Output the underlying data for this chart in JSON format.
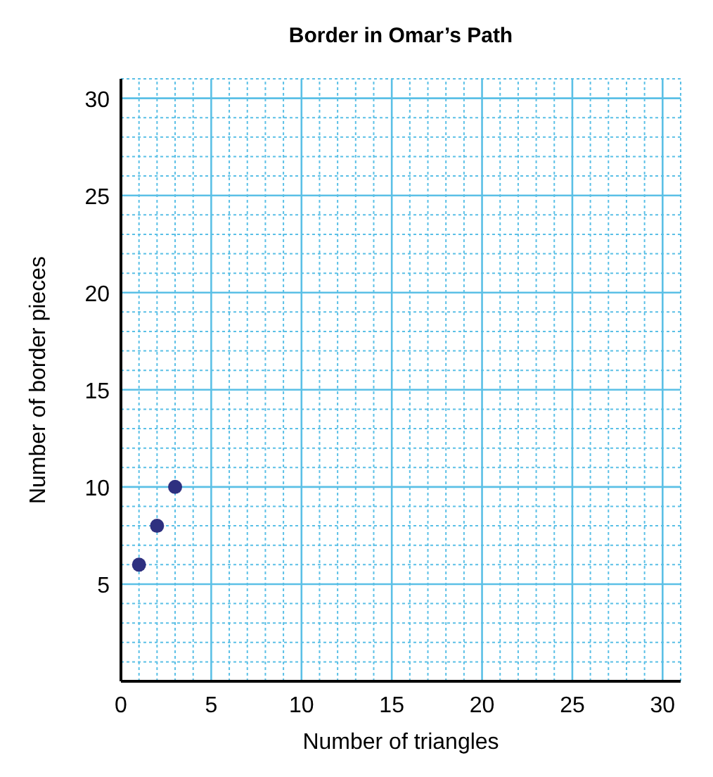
{
  "chart_data": {
    "type": "scatter",
    "title": "Border in Omar’s Path",
    "xlabel": "Number of triangles",
    "ylabel": "Number of border pieces",
    "x": [
      1,
      2,
      3
    ],
    "series": [
      {
        "color": "#2e3080",
        "values": [
          6,
          8,
          10
        ]
      }
    ],
    "xlim": [
      0,
      31
    ],
    "ylim": [
      0,
      31
    ],
    "xticks": [
      0,
      {
        "value": 1,
        "label": null
      },
      {
        "value": 2,
        "label": null
      },
      {
        "value": 3,
        "label": null
      },
      {
        "value": 4,
        "label": null
      },
      5,
      {
        "value": 6,
        "label": null
      },
      {
        "value": 7,
        "label": null
      },
      {
        "value": 8,
        "label": null
      },
      {
        "value": 9,
        "label": null
      },
      10,
      {
        "value": 11,
        "label": null
      },
      {
        "value": 12,
        "label": null
      },
      {
        "value": 13,
        "label": null
      },
      {
        "value": 14,
        "label": null
      },
      15,
      {
        "value": 16,
        "label": null
      },
      {
        "value": 17,
        "label": null
      },
      {
        "value": 18,
        "label": null
      },
      {
        "value": 19,
        "label": null
      },
      20,
      {
        "value": 21,
        "label": null
      },
      {
        "value": 22,
        "label": null
      },
      {
        "value": 23,
        "label": null
      },
      {
        "value": 24,
        "label": null
      },
      25,
      {
        "value": 26,
        "label": null
      },
      {
        "value": 27,
        "label": null
      },
      {
        "value": 28,
        "label": null
      },
      {
        "value": 29,
        "label": null
      },
      30,
      {
        "value": 31,
        "label": null
      }
    ],
    "yticks": [
      {
        "value": 1,
        "label": null
      },
      {
        "value": 2,
        "label": null
      },
      {
        "value": 3,
        "label": null
      },
      {
        "value": 4,
        "label": null
      },
      5,
      {
        "value": 6,
        "label": null
      },
      {
        "value": 7,
        "label": null
      },
      {
        "value": 8,
        "label": null
      },
      {
        "value": 9,
        "label": null
      },
      10,
      {
        "value": 11,
        "label": null
      },
      {
        "value": 12,
        "label": null
      },
      {
        "value": 13,
        "label": null
      },
      {
        "value": 14,
        "label": null
      },
      15,
      {
        "value": 16,
        "label": null
      },
      {
        "value": 17,
        "label": null
      },
      {
        "value": 18,
        "label": null
      },
      {
        "value": 19,
        "label": null
      },
      20,
      {
        "value": 21,
        "label": null
      },
      {
        "value": 22,
        "label": null
      },
      {
        "value": 23,
        "label": null
      },
      {
        "value": 24,
        "label": null
      },
      25,
      {
        "value": 26,
        "label": null
      },
      {
        "value": 27,
        "label": null
      },
      {
        "value": 28,
        "label": null
      },
      {
        "value": 29,
        "label": null
      },
      30,
      {
        "value": 31,
        "label": null
      }
    ],
    "grid": true,
    "marker": "circle"
  }
}
